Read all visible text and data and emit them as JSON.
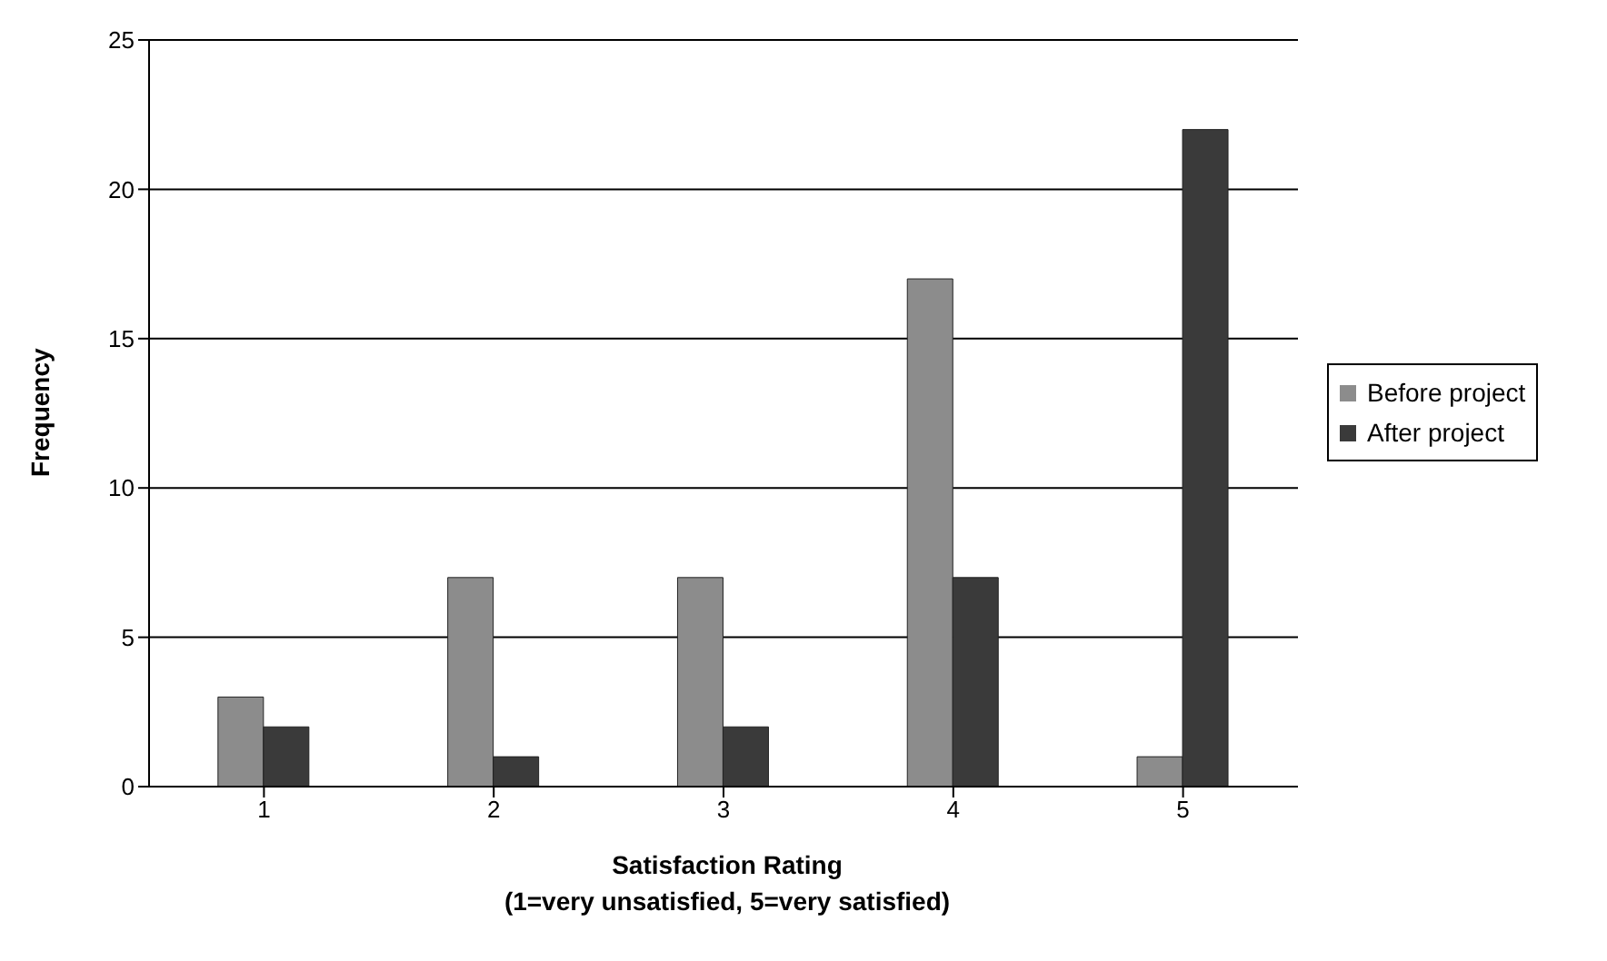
{
  "chart_data": {
    "type": "bar",
    "xlabel": "Satisfaction Rating\n(1=very unsatisfied, 5=very satisfied)",
    "ylabel": "Frequency",
    "categories": [
      "1",
      "2",
      "3",
      "4",
      "5"
    ],
    "series": [
      {
        "name": "Before project",
        "color": "#8c8c8c",
        "values": [
          3,
          7,
          7,
          17,
          1
        ]
      },
      {
        "name": "After project",
        "color": "#3a3a3a",
        "values": [
          2,
          1,
          2,
          7,
          22
        ]
      }
    ],
    "ylim": [
      0,
      25
    ],
    "yticks": [
      0,
      5,
      10,
      15,
      20,
      25
    ],
    "grid": "y",
    "legend": "right"
  }
}
